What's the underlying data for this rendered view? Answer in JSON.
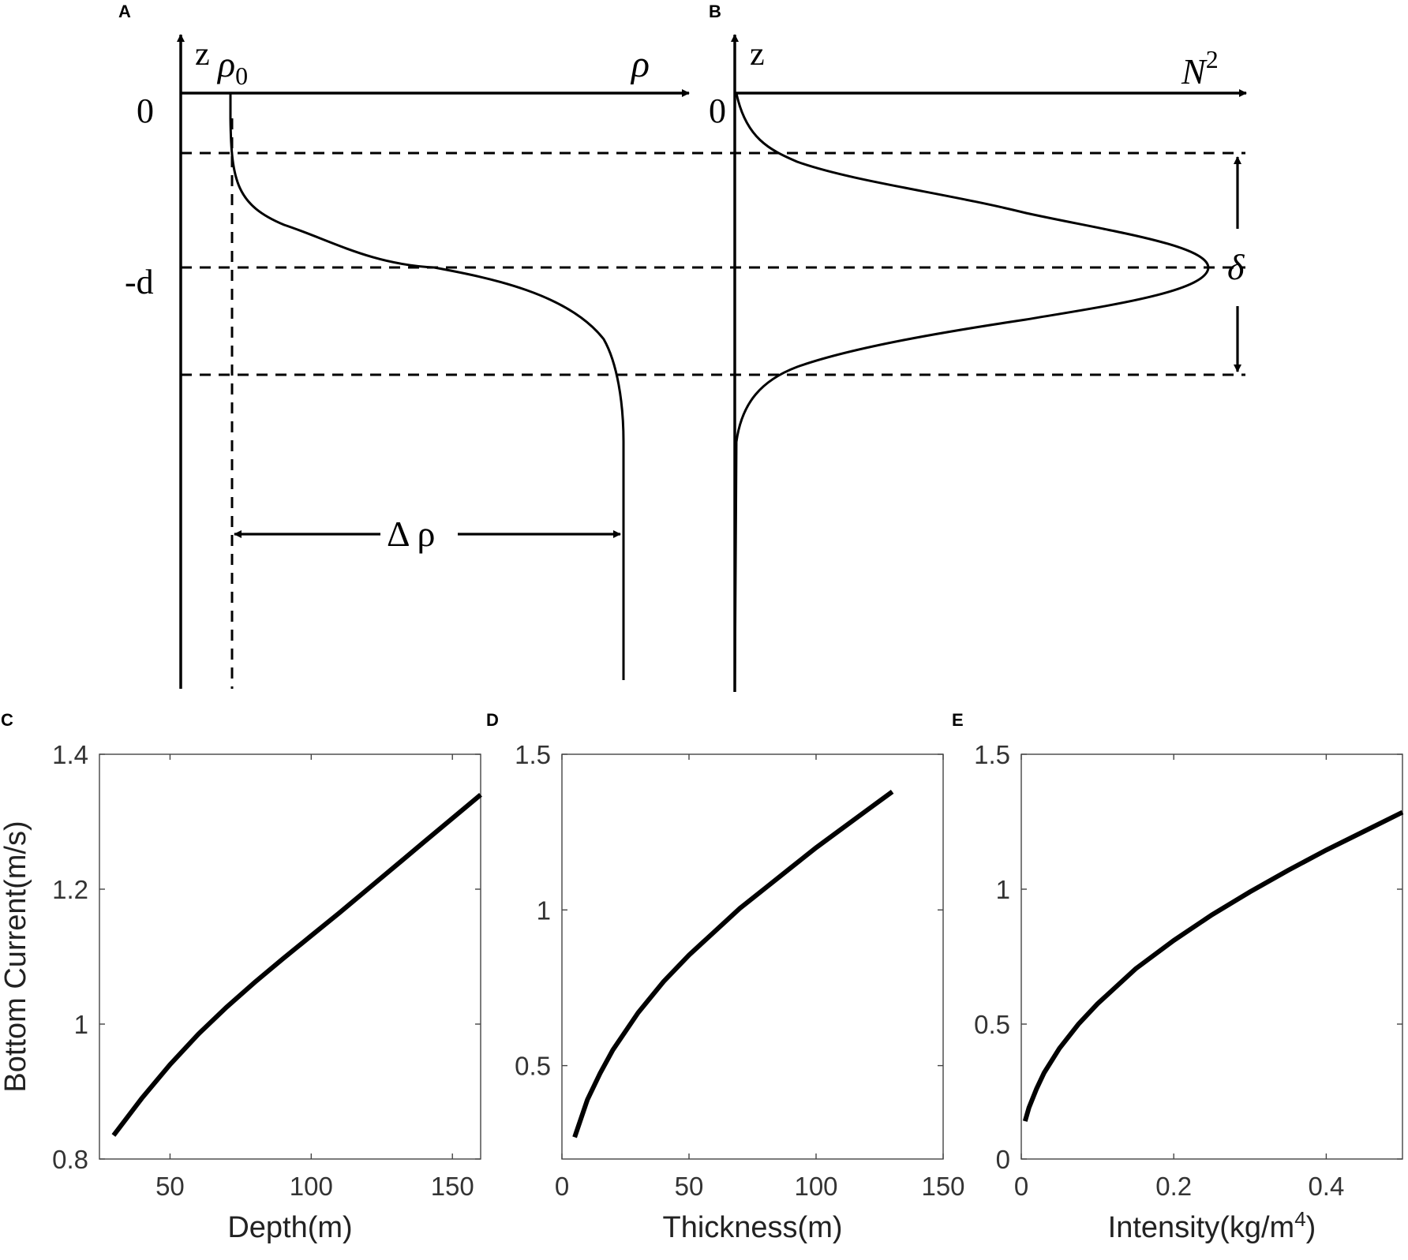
{
  "colors": {
    "curve": "#000000",
    "frame": "#444444",
    "text": "#333333",
    "background": "#ffffff"
  },
  "panel_a": {
    "letter": "A",
    "z_label": "z",
    "rho0_label": "ρ",
    "rho0_sub": "0",
    "rho_label": "ρ",
    "zero_label": "0",
    "d_label": "-d",
    "delta_rho_label": "Δ ρ"
  },
  "panel_b": {
    "letter": "B",
    "z_label": "z",
    "n2_label": "N",
    "n2_sup": "2",
    "zero_label": "0",
    "delta_label": "δ"
  },
  "chart_data": [
    {
      "panel": "C",
      "type": "line",
      "xlabel": "Depth(m)",
      "ylabel": "Bottom Current(m/s)",
      "xlim": [
        25,
        160
      ],
      "ylim": [
        0.8,
        1.4
      ],
      "xticks": [
        50,
        100,
        150
      ],
      "yticks": [
        0.8,
        1,
        1.2,
        1.4
      ],
      "xtick_labels": [
        "50",
        "100",
        "150"
      ],
      "ytick_labels": [
        "0.8",
        "1",
        "1.2",
        "1.4"
      ],
      "grid": false,
      "series": [
        {
          "x": [
            30,
            40,
            50,
            60,
            70,
            80,
            90,
            100,
            110,
            120,
            130,
            140,
            150,
            160
          ],
          "y": [
            0.835,
            0.89,
            0.94,
            0.985,
            1.025,
            1.062,
            1.097,
            1.131,
            1.165,
            1.2,
            1.235,
            1.27,
            1.305,
            1.34
          ]
        }
      ]
    },
    {
      "panel": "D",
      "type": "line",
      "xlabel": "Thickness(m)",
      "ylabel": "",
      "xlim": [
        0,
        150
      ],
      "ylim": [
        0.2,
        1.5
      ],
      "xticks": [
        0,
        50,
        100,
        150
      ],
      "yticks": [
        0.5,
        1,
        1.5
      ],
      "xtick_labels": [
        "0",
        "50",
        "100",
        "150"
      ],
      "ytick_labels": [
        "0.5",
        "1",
        "1.5"
      ],
      "grid": false,
      "series": [
        {
          "x": [
            5,
            10,
            15,
            20,
            30,
            40,
            50,
            60,
            70,
            80,
            90,
            100,
            110,
            120,
            130
          ],
          "y": [
            0.27,
            0.39,
            0.475,
            0.55,
            0.67,
            0.77,
            0.855,
            0.93,
            1.005,
            1.07,
            1.135,
            1.2,
            1.26,
            1.32,
            1.38
          ]
        }
      ]
    },
    {
      "panel": "E",
      "type": "line",
      "xlabel": "Intensity(kg/m",
      "xlabel_sup": "4",
      "xlabel_end": ")",
      "ylabel": "",
      "xlim": [
        0,
        0.5
      ],
      "ylim": [
        0,
        1.5
      ],
      "xticks": [
        0,
        0.2,
        0.4
      ],
      "yticks": [
        0,
        0.5,
        1,
        1.5
      ],
      "xtick_labels": [
        "0",
        "0.2",
        "0.4"
      ],
      "ytick_labels": [
        "0",
        "0.5",
        "1",
        "1.5"
      ],
      "grid": false,
      "series": [
        {
          "x": [
            0.005,
            0.01,
            0.02,
            0.03,
            0.05,
            0.075,
            0.1,
            0.15,
            0.2,
            0.25,
            0.3,
            0.35,
            0.4,
            0.45,
            0.5
          ],
          "y": [
            0.14,
            0.19,
            0.26,
            0.32,
            0.41,
            0.5,
            0.575,
            0.705,
            0.81,
            0.905,
            0.99,
            1.07,
            1.145,
            1.215,
            1.285
          ]
        }
      ]
    }
  ]
}
